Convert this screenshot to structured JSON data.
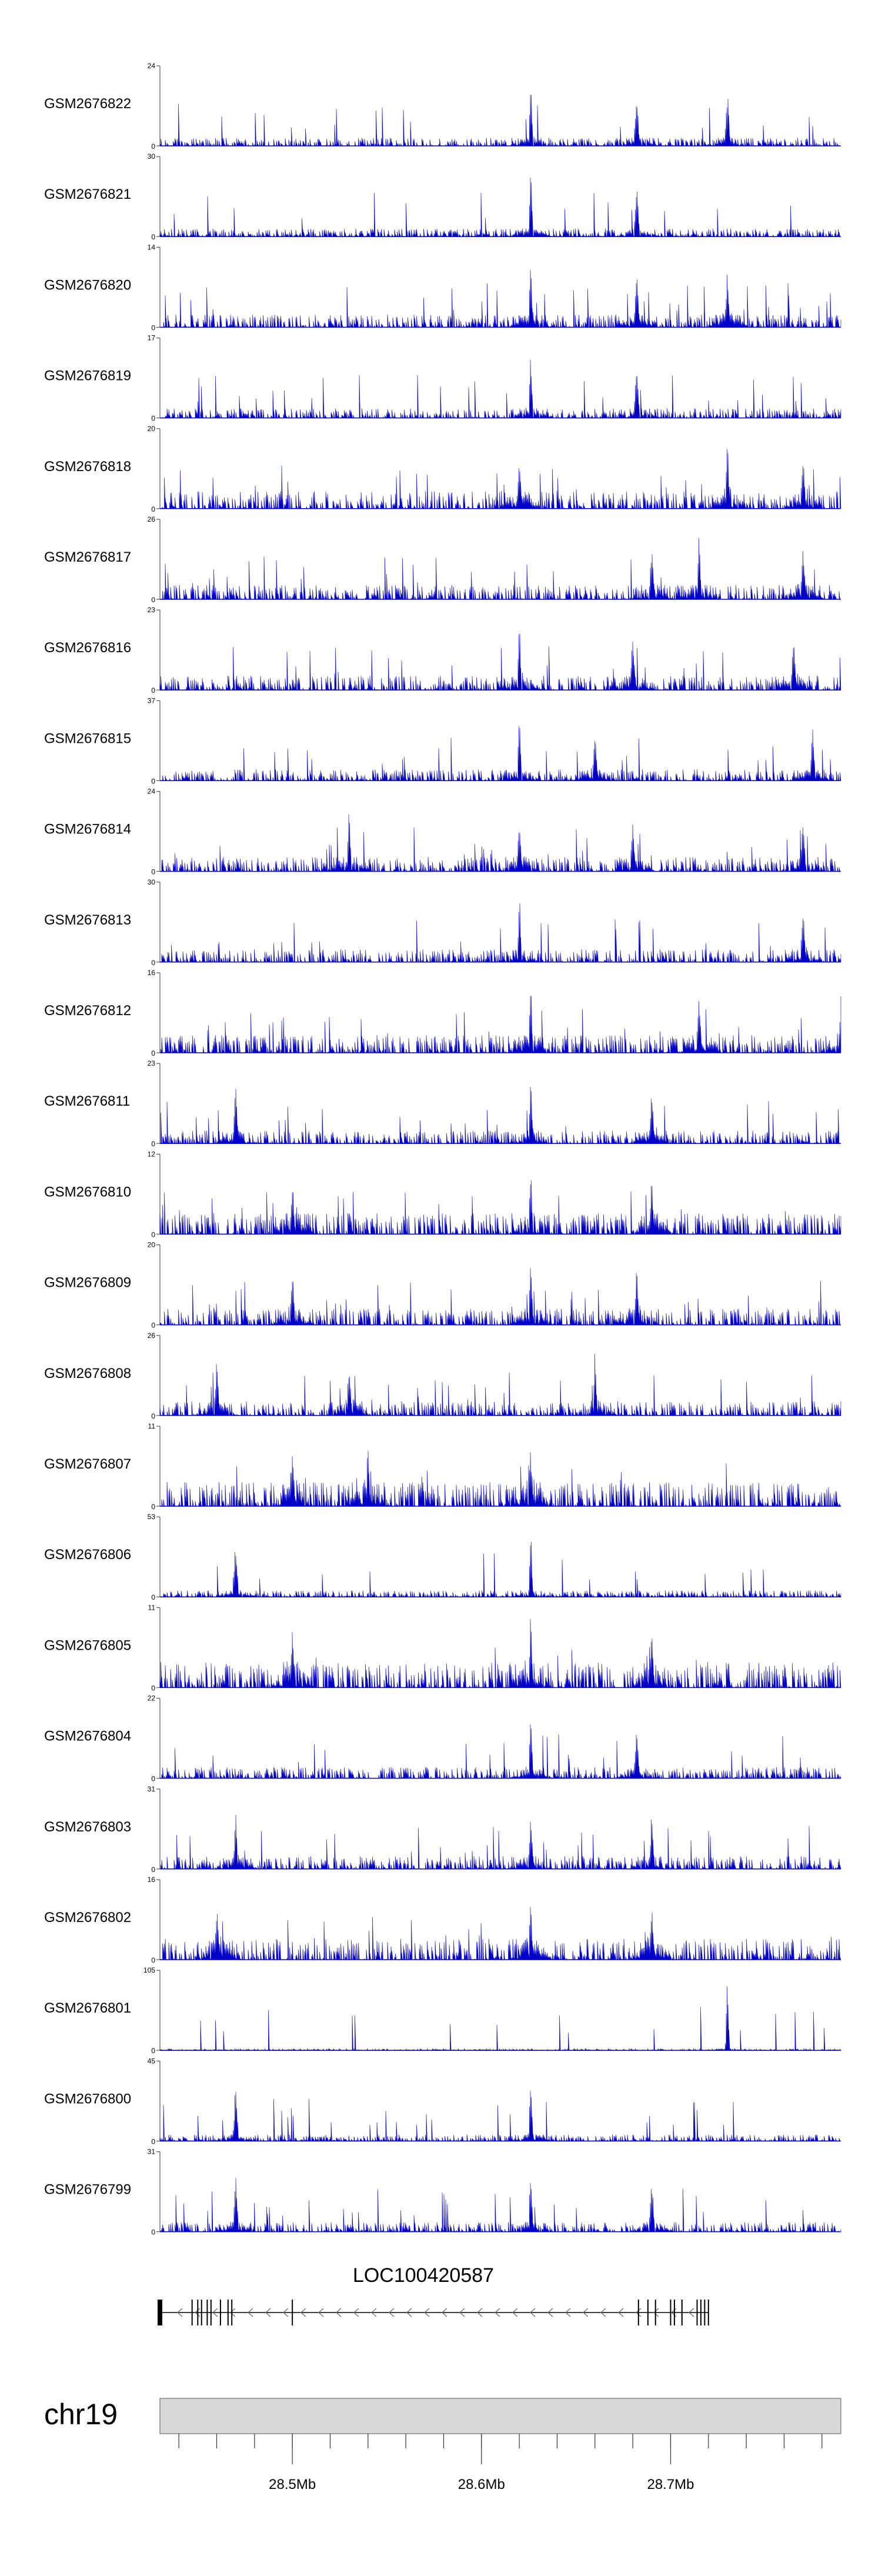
{
  "colors": {
    "signal": "#0000c8",
    "axis": "#555555",
    "ideogram_fill": "#d8d8d8",
    "ideogram_stroke": "#888888",
    "gene": "#000000"
  },
  "chart_data": {
    "type": "area",
    "x_range_mb": [
      28.43,
      28.79
    ],
    "tracks": [
      {
        "name": "GSM2676822",
        "ymax": "24",
        "ymin": "0",
        "peak_mb": [
          28.626,
          28.682,
          28.73
        ],
        "noise": 0.1
      },
      {
        "name": "GSM2676821",
        "ymax": "30",
        "ymin": "0",
        "peak_mb": [
          28.626,
          28.682
        ],
        "noise": 0.1
      },
      {
        "name": "GSM2676820",
        "ymax": "14",
        "ymin": "0",
        "peak_mb": [
          28.626,
          28.682,
          28.73
        ],
        "noise": 0.16
      },
      {
        "name": "GSM2676819",
        "ymax": "17",
        "ymin": "0",
        "peak_mb": [
          28.626,
          28.682
        ],
        "noise": 0.12
      },
      {
        "name": "GSM2676818",
        "ymax": "20",
        "ymin": "0",
        "peak_mb": [
          28.73,
          28.77,
          28.62
        ],
        "noise": 0.22
      },
      {
        "name": "GSM2676817",
        "ymax": "26",
        "ymin": "0",
        "peak_mb": [
          28.715,
          28.69,
          28.77
        ],
        "noise": 0.18
      },
      {
        "name": "GSM2676816",
        "ymax": "23",
        "ymin": "0",
        "peak_mb": [
          28.62,
          28.68,
          28.765
        ],
        "noise": 0.18
      },
      {
        "name": "GSM2676815",
        "ymax": "37",
        "ymin": "0",
        "peak_mb": [
          28.62,
          28.66,
          28.775
        ],
        "noise": 0.14
      },
      {
        "name": "GSM2676814",
        "ymax": "24",
        "ymin": "0",
        "peak_mb": [
          28.53,
          28.62,
          28.68,
          28.77
        ],
        "noise": 0.18
      },
      {
        "name": "GSM2676813",
        "ymax": "30",
        "ymin": "0",
        "peak_mb": [
          28.62,
          28.77
        ],
        "noise": 0.16
      },
      {
        "name": "GSM2676812",
        "ymax": "16",
        "ymin": "0",
        "peak_mb": [
          28.626,
          28.715,
          28.79
        ],
        "noise": 0.22
      },
      {
        "name": "GSM2676811",
        "ymax": "23",
        "ymin": "0",
        "peak_mb": [
          28.626,
          28.47,
          28.69
        ],
        "noise": 0.16
      },
      {
        "name": "GSM2676810",
        "ymax": "12",
        "ymin": "0",
        "peak_mb": [
          28.626,
          28.5,
          28.69
        ],
        "noise": 0.26
      },
      {
        "name": "GSM2676809",
        "ymax": "20",
        "ymin": "0",
        "peak_mb": [
          28.626,
          28.682,
          28.5
        ],
        "noise": 0.2
      },
      {
        "name": "GSM2676808",
        "ymax": "26",
        "ymin": "0",
        "peak_mb": [
          28.66,
          28.46,
          28.53
        ],
        "noise": 0.18
      },
      {
        "name": "GSM2676807",
        "ymax": "11",
        "ymin": "0",
        "peak_mb": [
          28.54,
          28.626,
          28.5
        ],
        "noise": 0.3
      },
      {
        "name": "GSM2676806",
        "ymax": "53",
        "ymin": "0",
        "peak_mb": [
          28.626,
          28.47
        ],
        "noise": 0.08
      },
      {
        "name": "GSM2676805",
        "ymax": "11",
        "ymin": "0",
        "peak_mb": [
          28.626,
          28.69,
          28.5
        ],
        "noise": 0.32
      },
      {
        "name": "GSM2676804",
        "ymax": "22",
        "ymin": "0",
        "peak_mb": [
          28.626,
          28.682
        ],
        "noise": 0.14
      },
      {
        "name": "GSM2676803",
        "ymax": "31",
        "ymin": "0",
        "peak_mb": [
          28.47,
          28.626,
          28.69
        ],
        "noise": 0.16
      },
      {
        "name": "GSM2676802",
        "ymax": "16",
        "ymin": "0",
        "peak_mb": [
          28.626,
          28.69,
          28.46
        ],
        "noise": 0.26
      },
      {
        "name": "GSM2676801",
        "ymax": "105",
        "ymin": "0",
        "peak_mb": [
          28.73
        ],
        "noise": 0.02
      },
      {
        "name": "GSM2676800",
        "ymax": "45",
        "ymin": "0",
        "peak_mb": [
          28.626,
          28.47
        ],
        "noise": 0.08
      },
      {
        "name": "GSM2676799",
        "ymax": "31",
        "ymin": "0",
        "peak_mb": [
          28.626,
          28.47,
          28.69
        ],
        "noise": 0.12
      }
    ],
    "gene": {
      "name": "LOC100420587",
      "start_mb": 28.43,
      "end_mb": 28.72,
      "strand": "-",
      "exons_mb": [
        28.43,
        28.447,
        28.45,
        28.452,
        28.455,
        28.457,
        28.462,
        28.466,
        28.468,
        28.5,
        28.683,
        28.688,
        28.692,
        28.7,
        28.702,
        28.706,
        28.714,
        28.716,
        28.718,
        28.72
      ]
    },
    "chromosome": {
      "name": "chr19",
      "axis_ticks": [
        {
          "mb": 28.5,
          "label": "28.5Mb"
        },
        {
          "mb": 28.6,
          "label": "28.6Mb"
        },
        {
          "mb": 28.7,
          "label": "28.7Mb"
        }
      ]
    }
  }
}
